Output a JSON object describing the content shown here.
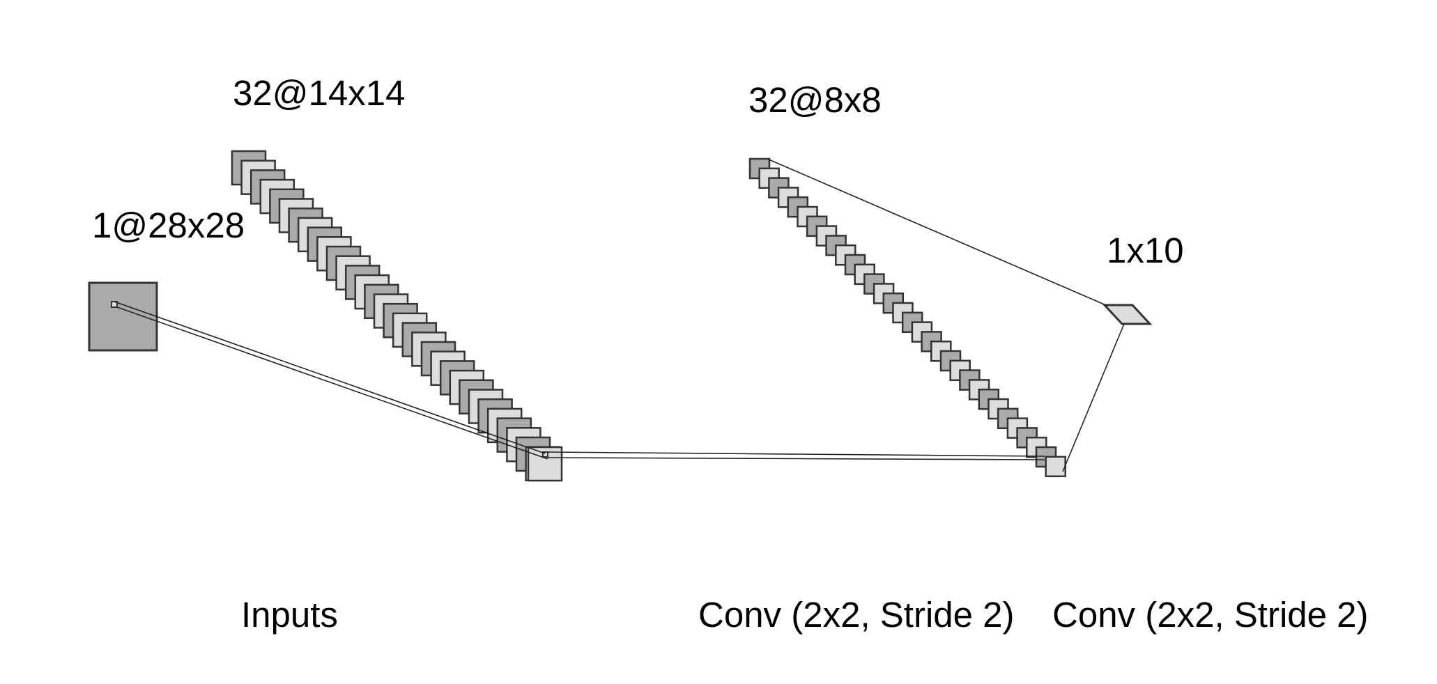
{
  "diagram": {
    "layers": [
      {
        "shape_label": "1@28x28",
        "kind": "input",
        "maps": 1
      },
      {
        "shape_label": "32@14x14",
        "kind": "feature-maps",
        "maps": 32
      },
      {
        "shape_label": "32@8x8",
        "kind": "feature-maps",
        "maps": 32
      },
      {
        "shape_label": "1x10",
        "kind": "output"
      }
    ],
    "operations": [
      {
        "label": "Inputs"
      },
      {
        "label": "Conv (2x2, Stride 2)"
      },
      {
        "label": "Conv (2x2, Stride 2)"
      }
    ],
    "colors": {
      "map_dark": "#aaaaaa",
      "map_light": "#dddddd",
      "stroke": "#333333",
      "connector": "#222222"
    }
  }
}
